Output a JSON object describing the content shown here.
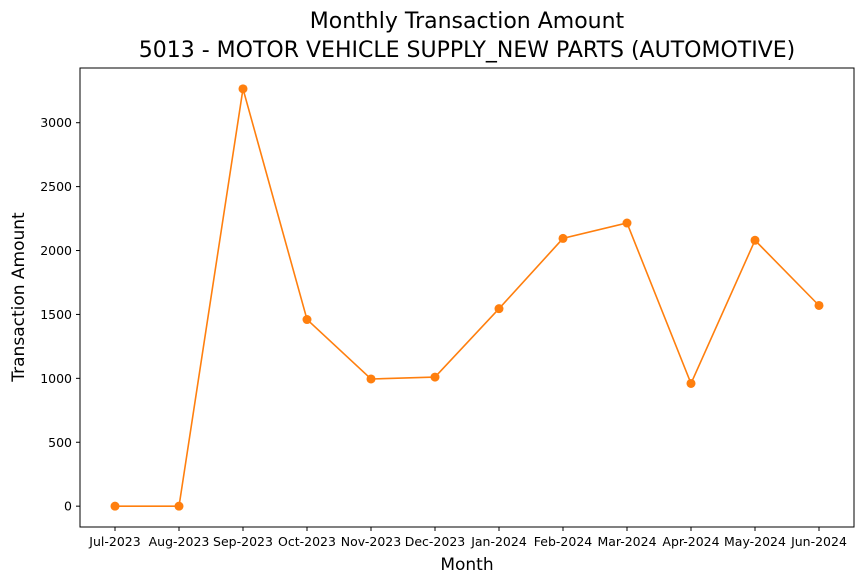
{
  "chart_data": {
    "type": "line",
    "title": "Monthly Transaction Amount",
    "subtitle": "5013 - MOTOR VEHICLE SUPPLY_NEW PARTS (AUTOMOTIVE)",
    "xlabel": "Month",
    "ylabel": "Transaction Amount",
    "categories": [
      "Jul-2023",
      "Aug-2023",
      "Sep-2023",
      "Oct-2023",
      "Nov-2023",
      "Dec-2023",
      "Jan-2024",
      "Feb-2024",
      "Mar-2024",
      "Apr-2024",
      "May-2024",
      "Jun-2024"
    ],
    "series": [
      {
        "values": [
          0,
          0,
          3265,
          1460,
          995,
          1010,
          1545,
          2095,
          2215,
          960,
          2080,
          1570
        ],
        "color": "#ff7f0e",
        "marker": "circle"
      }
    ],
    "yticks": [
      0,
      500,
      1000,
      1500,
      2000,
      2500,
      3000
    ],
    "ylim": [
      -163,
      3428
    ],
    "grid": false,
    "legend": "none"
  }
}
